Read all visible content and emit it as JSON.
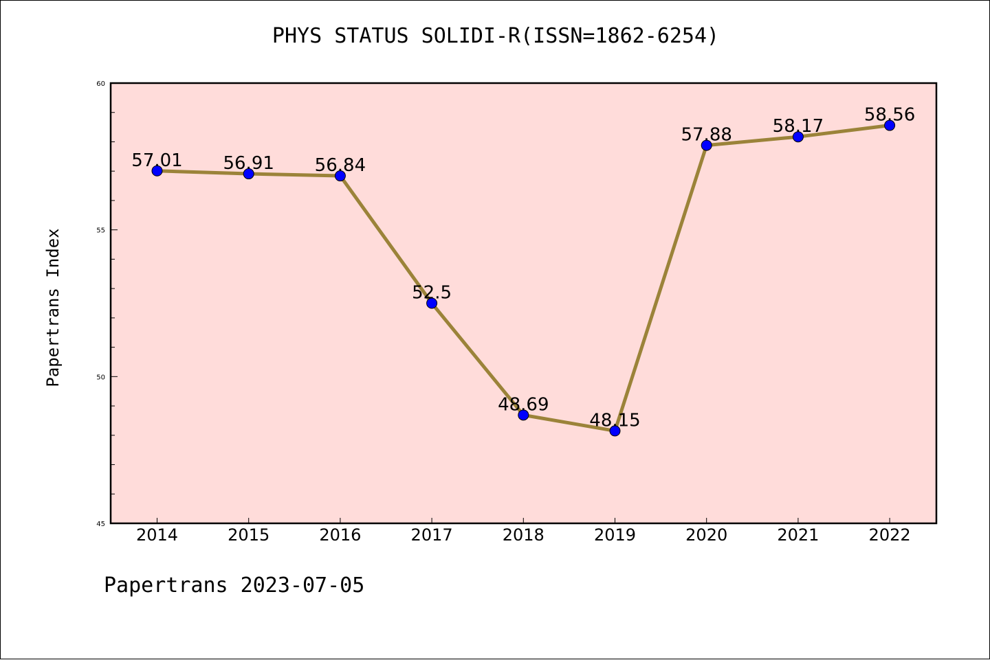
{
  "chart_data": {
    "type": "line",
    "title": "PHYS STATUS SOLIDI-R(ISSN=1862-6254)",
    "ylabel": "Papertrans Index",
    "xlabel": "",
    "categories": [
      "2014",
      "2015",
      "2016",
      "2017",
      "2018",
      "2019",
      "2020",
      "2021",
      "2022"
    ],
    "values": [
      57.01,
      56.91,
      56.84,
      52.5,
      48.69,
      48.15,
      57.88,
      58.17,
      58.56
    ],
    "data_labels": [
      "57.01",
      "56.91",
      "56.84",
      "52.5",
      "48.69",
      "48.15",
      "57.88",
      "58.17",
      "58.56"
    ],
    "ylim": [
      45,
      60
    ],
    "yticks": [
      "45",
      "50",
      "55",
      "60"
    ],
    "grid": false,
    "colors": {
      "plot_background": "#ffdcda",
      "line": "#9b8339",
      "marker": "#0000ff"
    }
  },
  "footer": "Papertrans 2023-07-05"
}
